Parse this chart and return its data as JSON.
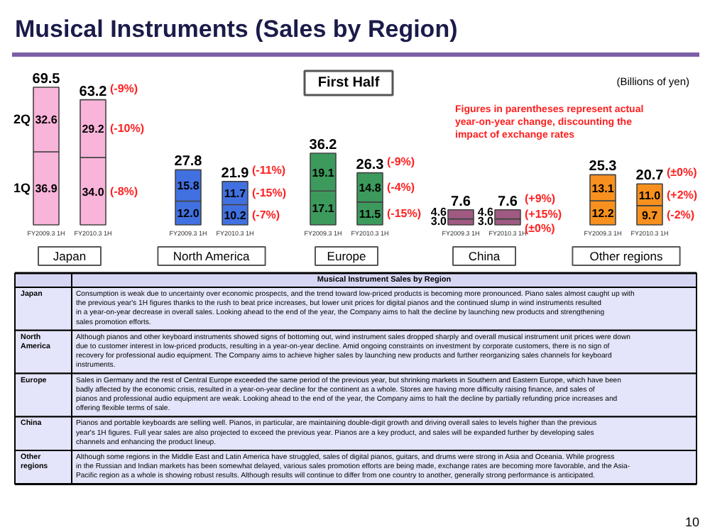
{
  "chart_data": [
    {
      "type": "other",
      "title": "Musical Instruments (Sales by Region)",
      "subtitle": "First Half",
      "annotations": [
        "(Billions of yen)",
        "Figures in parentheses represent actual year-on-year change, discounting the impact of exchange rates"
      ]
    },
    {
      "type": "bar",
      "stacked": true,
      "xlabel": "Japan",
      "categories": [
        "FY2009.3 1H",
        "FY2010.3 1H"
      ],
      "totals": [
        "69.5",
        "63.2"
      ],
      "series": [
        {
          "name": "1Q",
          "colors": [
            "#f9b4da",
            "#f9b4da"
          ],
          "values": [
            36.9,
            34.0
          ],
          "value_labels": [
            "36.9",
            "34.0"
          ]
        },
        {
          "name": "2Q",
          "colors": [
            "#f9b4da",
            "#f9b4da"
          ],
          "values": [
            32.6,
            29.2
          ],
          "value_labels": [
            "32.6",
            "29.2"
          ]
        }
      ],
      "annotations": [
        "(-9%)",
        "(-10%)",
        "(-8%)"
      ]
    },
    {
      "type": "bar",
      "stacked": true,
      "xlabel": "North America",
      "categories": [
        "FY2009.3 1H",
        "FY2010.3 1H"
      ],
      "totals": [
        "27.8",
        "21.9"
      ],
      "series": [
        {
          "colors": [
            "#4170e0",
            "#4170e0"
          ],
          "values": [
            12.0,
            10.2
          ],
          "value_labels": [
            "12.0",
            "10.2"
          ]
        },
        {
          "colors": [
            "#4170e0",
            "#4170e0"
          ],
          "values": [
            15.8,
            11.7
          ],
          "value_labels": [
            "15.8",
            "11.7"
          ]
        }
      ],
      "annotations": [
        "(-11%)",
        "(-15%)",
        "(-7%)"
      ]
    },
    {
      "type": "bar",
      "stacked": true,
      "xlabel": "Europe",
      "categories": [
        "FY2009.3 1H",
        "FY2010.3 1H"
      ],
      "totals": [
        "36.2",
        "26.3"
      ],
      "series": [
        {
          "colors": [
            "#3c9a5c",
            "#3c9a5c"
          ],
          "values": [
            17.1,
            11.5
          ],
          "value_labels": [
            "17.1",
            "11.5"
          ]
        },
        {
          "colors": [
            "#3c9a5c",
            "#3c9a5c"
          ],
          "values": [
            19.1,
            14.8
          ],
          "value_labels": [
            "19.1",
            "14.8"
          ]
        }
      ],
      "annotations": [
        "(-9%)",
        "(-4%)",
        "(-15%)"
      ]
    },
    {
      "type": "bar",
      "stacked": true,
      "xlabel": "China",
      "categories": [
        "FY2009.3 1H",
        "FY2010.3 1H"
      ],
      "totals": [
        "7.6",
        "7.6"
      ],
      "series": [
        {
          "colors": [
            "#a05a82",
            "#a05a82"
          ],
          "values": [
            3.0,
            3.0
          ],
          "value_labels": [
            "3.0",
            "3.0"
          ]
        },
        {
          "colors": [
            "#a05a82",
            "#a05a82"
          ],
          "values": [
            4.6,
            4.6
          ],
          "value_labels": [
            "4.6",
            "4.6"
          ]
        }
      ],
      "annotations": [
        "(+9%)",
        "(+15%)",
        "(±0%)"
      ]
    },
    {
      "type": "bar",
      "stacked": true,
      "xlabel": "Other regions",
      "categories": [
        "FY2009.3 1H",
        "FY2010.3 1H"
      ],
      "totals": [
        "25.3",
        "20.7"
      ],
      "series": [
        {
          "colors": [
            "#f7901e",
            "#f7901e"
          ],
          "values": [
            12.2,
            9.7
          ],
          "value_labels": [
            "12.2",
            "9.7"
          ]
        },
        {
          "colors": [
            "#f7901e",
            "#f7901e"
          ],
          "values": [
            13.1,
            11.0
          ],
          "value_labels": [
            "13.1",
            "11.0"
          ]
        }
      ],
      "annotations": [
        "(±0%)",
        "(+2%)",
        "(-2%)"
      ]
    },
    {
      "type": "other",
      "title": "Musical Instrument Sales by Region",
      "annotations": [
        "Japan",
        "Consumption is weak due to uncertainty over economic prospects, and the trend toward low-priced products is becoming more pronounced. Piano sales almost caught up with the previous year's 1H figures thanks to the rush to beat price increases, but lower unit prices for digital pianos and the continued slump in wind instruments resulted in a year-on-year decrease in overall sales. Looking ahead to the end of the year, the Company aims to halt the decline by launching new products and strengthening sales promotion efforts.",
        "North America",
        "Although pianos and other keyboard instruments showed signs of bottoming out, wind instrument sales dropped sharply and overall musical instrument unit prices were down due to customer interest in low-priced products, resulting in a year-on-year decline. Amid ongoing constraints on investment by corporate customers, there is no sign of recovery for professional audio equipment. The Company aims to achieve higher sales by launching new products and further reorganizing sales channels for keyboard instruments.",
        "Europe",
        "Sales in Germany and the rest of Central Europe exceeded the same period of the previous year, but shrinking markets in Southern and Eastern Europe, which have been badly affected by the economic crisis, resulted in a year-on-year decline for the continent as a whole. Stores are having more difficulty raising finance, and sales of pianos and professional audio equipment are weak. Looking ahead to the end of the year, the Company aims to halt the decline by partially refunding price increases and offering flexible terms of sale.",
        "China",
        "Pianos and portable keyboards are selling well. Pianos, in particular, are maintaining double-digit growth and driving overall sales to levels higher than the previous year's 1H figures. Full year sales are also projected to exceed the previous year. Pianos are a key product, and sales will be expanded further by developing sales channels and enhancing the product lineup.",
        "Other regions",
        "Although some regions in the Middle East and Latin America have struggled, sales of digital pianos, guitars, and drums were strong in Asia and Oceania. While progress in the Russian and Indian markets has been somewhat delayed, various sales promotion efforts are being made, exchange rates are becoming more favorable, and the Asia-Pacific region as a whole is showing robust results. Although results will continue to differ from one country to another, generally strong performance is anticipated.",
        "10"
      ]
    }
  ]
}
